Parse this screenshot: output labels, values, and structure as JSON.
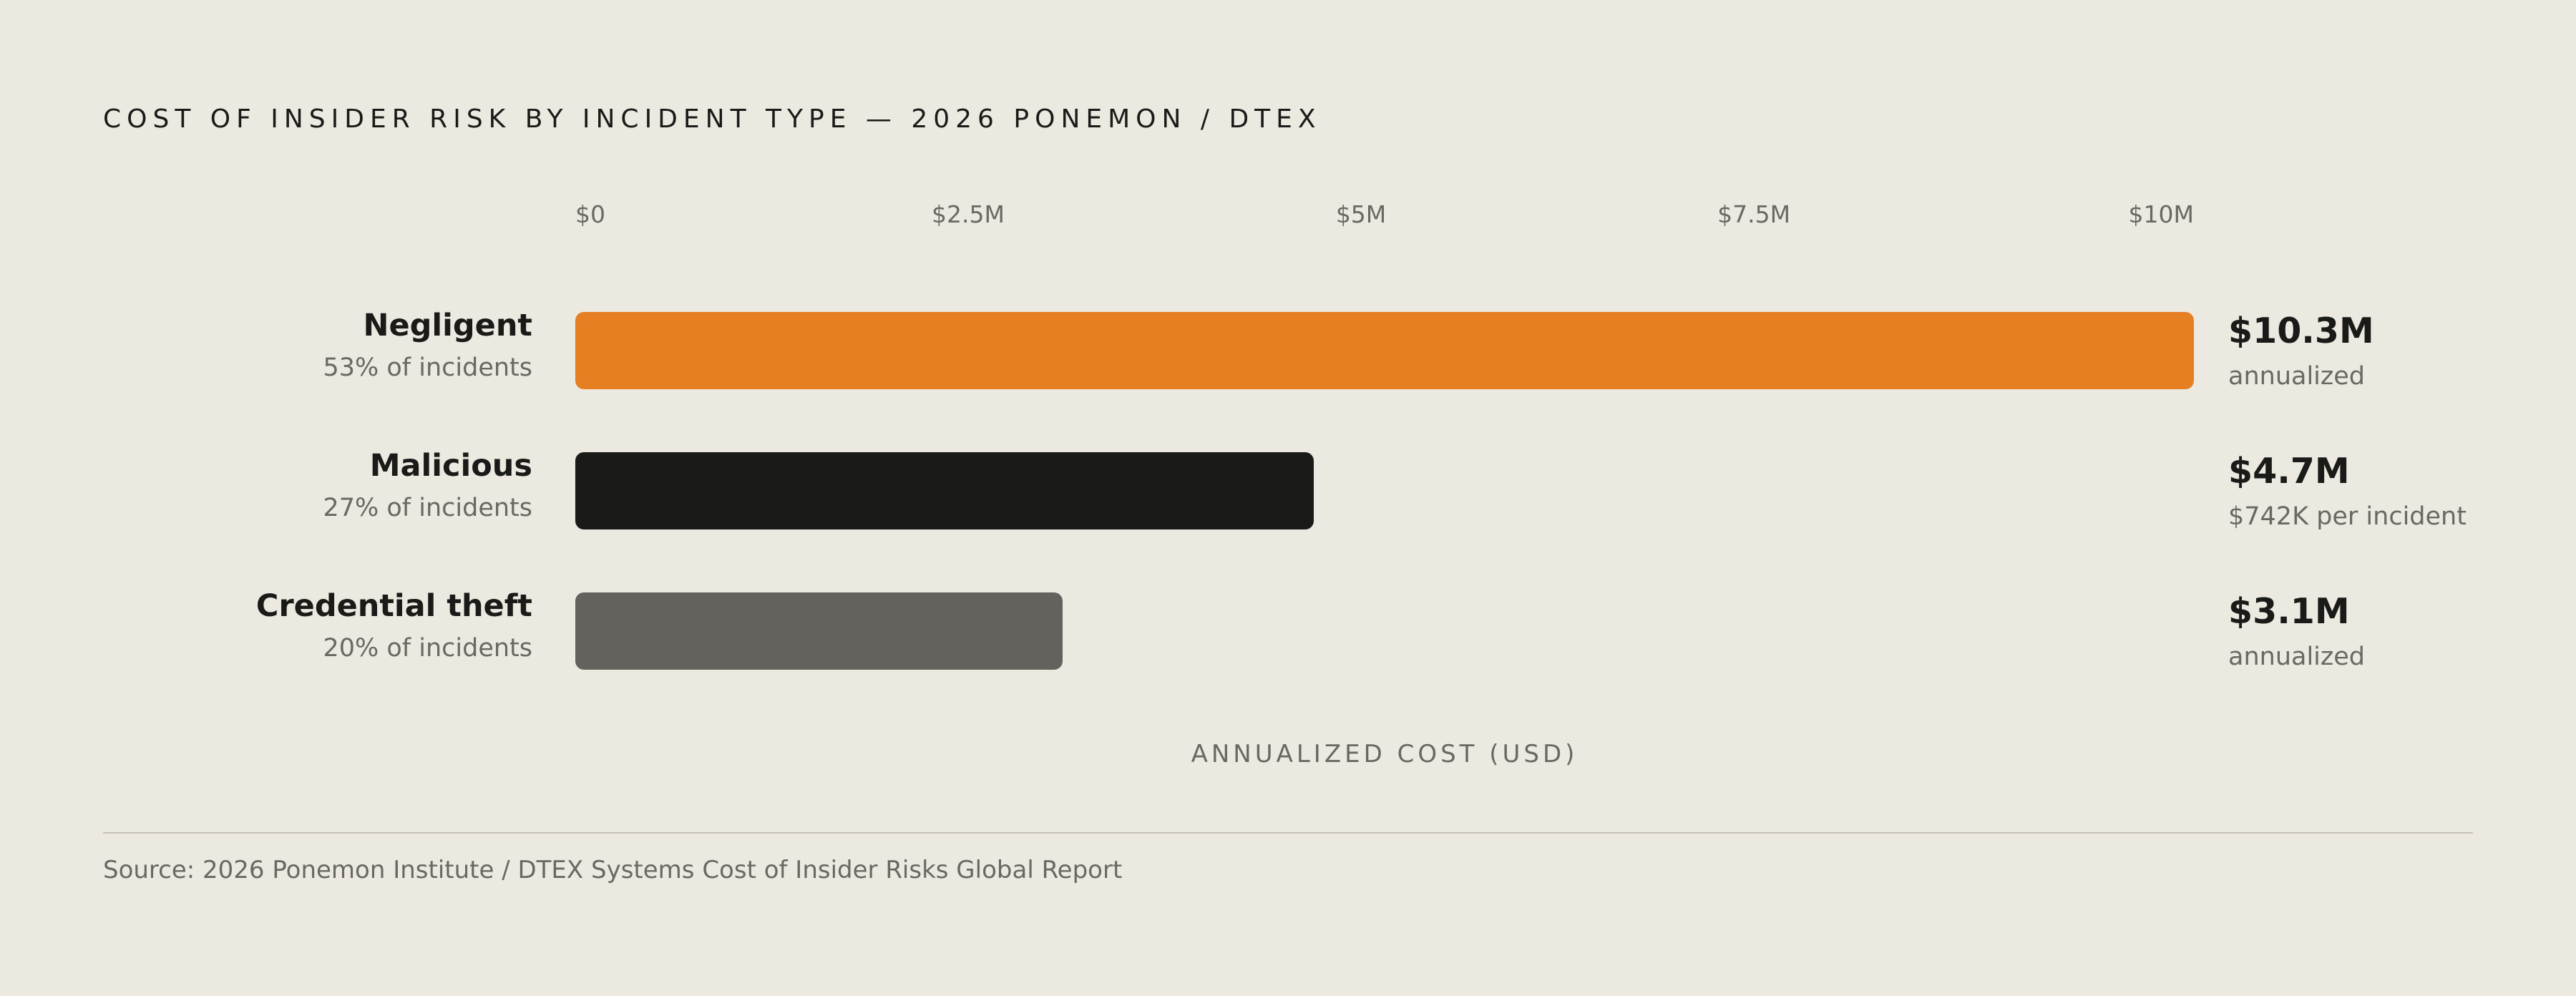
{
  "chart_data": {
    "type": "bar",
    "orientation": "horizontal",
    "title": "COST OF INSIDER RISK BY INCIDENT TYPE — 2026 PONEMON / DTEX",
    "xlabel": "ANNUALIZED COST (USD)",
    "ylabel": "",
    "xlim": [
      0,
      10.3
    ],
    "ticks": [
      {
        "value": 0,
        "label": "$0"
      },
      {
        "value": 2.5,
        "label": "$2.5M"
      },
      {
        "value": 5,
        "label": "$5M"
      },
      {
        "value": 7.5,
        "label": "$7.5M"
      },
      {
        "value": 10,
        "label": "$10M"
      }
    ],
    "categories": [
      "Negligent",
      "Malicious",
      "Credential theft"
    ],
    "values": [
      10.3,
      4.7,
      3.1
    ],
    "bars": [
      {
        "name": "Negligent",
        "share": "53% of incidents",
        "value": 10.3,
        "value_label": "$10.3M",
        "note": "annualized",
        "color": "#E67E22"
      },
      {
        "name": "Malicious",
        "share": "27% of incidents",
        "value": 4.7,
        "value_label": "$4.7M",
        "note": "$742K per incident",
        "color": "#1A1A18"
      },
      {
        "name": "Credential theft",
        "share": "20% of incidents",
        "value": 3.1,
        "value_label": "$3.1M",
        "note": "annualized",
        "color": "#64625C"
      }
    ],
    "grid": false,
    "legend": "none"
  },
  "footer": {
    "source": "Source: 2026 Ponemon Institute / DTEX Systems Cost of Insider Risks Global Report"
  }
}
